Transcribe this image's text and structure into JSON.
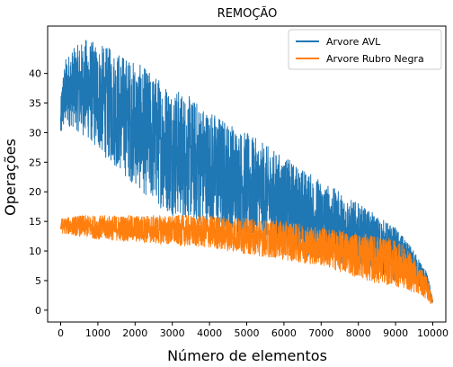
{
  "chart_data": {
    "type": "line",
    "title": "REMOÇÃO",
    "xlabel": "Número de elementos",
    "ylabel": "Operações",
    "xlim": [
      -350,
      10350
    ],
    "ylim": [
      -2,
      48
    ],
    "xticks": [
      0,
      1000,
      2000,
      3000,
      4000,
      5000,
      6000,
      7000,
      8000,
      9000,
      10000
    ],
    "yticks": [
      0,
      5,
      10,
      15,
      20,
      25,
      30,
      35,
      40
    ],
    "grid": false,
    "legend": "top-right",
    "series": [
      {
        "name": "Arvore AVL",
        "color": "#1f77b4",
        "envelope_x": [
          0,
          50,
          150,
          300,
          500,
          700,
          1000,
          1500,
          2000,
          2500,
          3000,
          3500,
          4000,
          4500,
          5000,
          5500,
          6000,
          6500,
          7000,
          7500,
          8000,
          8500,
          9000,
          9500,
          9700,
          9800,
          9900,
          9950,
          10000
        ],
        "envelope_min": [
          28,
          30,
          31,
          31,
          30,
          29,
          27,
          24,
          21,
          18,
          16,
          15,
          14,
          13,
          12,
          11,
          10,
          9,
          8.5,
          8,
          7,
          6,
          5,
          4,
          3.5,
          3,
          2,
          1.5,
          1
        ],
        "envelope_max": [
          35,
          40,
          43,
          44,
          45,
          46,
          45,
          44,
          42,
          40,
          38,
          36,
          34,
          32,
          30,
          28,
          26,
          24,
          22,
          20,
          18,
          16,
          14,
          10,
          8,
          7,
          5,
          3,
          2
        ]
      },
      {
        "name": "Arvore Rubro Negra",
        "color": "#ff7f0e",
        "envelope_x": [
          0,
          500,
          1000,
          2000,
          3000,
          4000,
          5000,
          6000,
          7000,
          7500,
          8000,
          8500,
          9000,
          9500,
          9700,
          9800,
          9900,
          9950,
          10000
        ],
        "envelope_min": [
          13,
          12.5,
          12,
          11.5,
          11,
          10.5,
          9.5,
          8.5,
          7.5,
          6.5,
          5.5,
          4.5,
          4,
          3,
          2.5,
          2,
          1.5,
          1,
          1
        ],
        "envelope_max": [
          15.5,
          16,
          16,
          16,
          16,
          16,
          15.5,
          15,
          14,
          13.5,
          13,
          12.5,
          12,
          9,
          7,
          6,
          5,
          3,
          2
        ]
      }
    ]
  }
}
